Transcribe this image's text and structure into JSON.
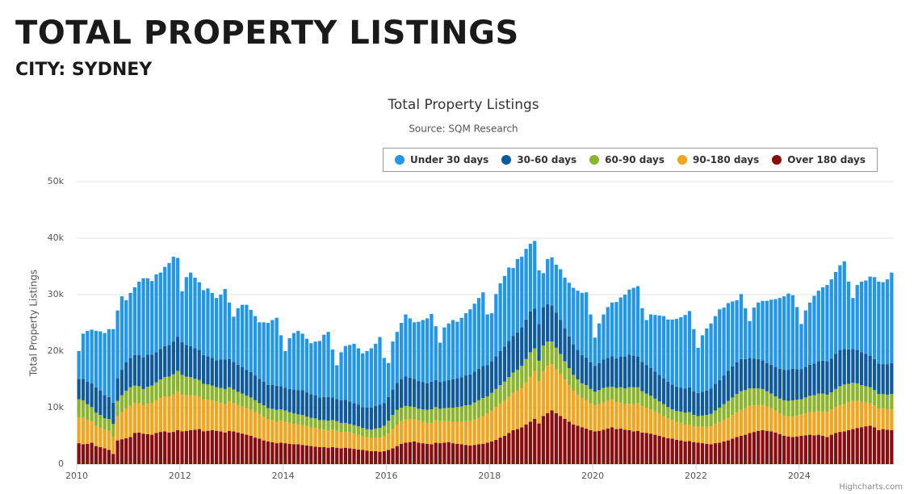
{
  "header": {
    "title": "TOTAL PROPERTY LISTINGS",
    "subtitle": "CITY: SYDNEY"
  },
  "credits": "Highcharts.com",
  "chart_data": {
    "type": "stacked_bar",
    "title": "Total Property Listings",
    "subtitle": "Source: SQM Research",
    "ylabel": "Total Property Listings",
    "grid": true,
    "legend": "top-right",
    "ylim": [
      0,
      50000
    ],
    "yticks": [
      0,
      {
        "value": 10000,
        "label": "10k"
      },
      {
        "value": 20000,
        "label": "20k"
      },
      {
        "value": 30000,
        "label": "30k"
      },
      {
        "value": 40000,
        "label": "40k"
      },
      {
        "value": 50000,
        "label": "50k"
      }
    ],
    "categories": [
      "2010",
      null,
      null,
      null,
      null,
      null,
      null,
      null,
      null,
      null,
      null,
      null,
      null,
      null,
      null,
      null,
      null,
      null,
      null,
      null,
      null,
      null,
      null,
      null,
      "2012",
      null,
      null,
      null,
      null,
      null,
      null,
      null,
      null,
      null,
      null,
      null,
      null,
      null,
      null,
      null,
      null,
      null,
      null,
      null,
      null,
      null,
      null,
      null,
      "2014",
      null,
      null,
      null,
      null,
      null,
      null,
      null,
      null,
      null,
      null,
      null,
      null,
      null,
      null,
      null,
      null,
      null,
      null,
      null,
      null,
      null,
      null,
      null,
      "2016",
      null,
      null,
      null,
      null,
      null,
      null,
      null,
      null,
      null,
      null,
      null,
      null,
      null,
      null,
      null,
      null,
      null,
      null,
      null,
      null,
      null,
      null,
      null,
      "2018",
      null,
      null,
      null,
      null,
      null,
      null,
      null,
      null,
      null,
      null,
      null,
      null,
      null,
      null,
      null,
      null,
      null,
      null,
      null,
      null,
      null,
      null,
      null,
      "2020",
      null,
      null,
      null,
      null,
      null,
      null,
      null,
      null,
      null,
      null,
      null,
      null,
      null,
      null,
      null,
      null,
      null,
      null,
      null,
      null,
      null,
      null,
      null,
      "2022",
      null,
      null,
      null,
      null,
      null,
      null,
      null,
      null,
      null,
      null,
      null,
      null,
      null,
      null,
      null,
      null,
      null,
      null,
      null,
      null,
      null,
      null,
      null,
      "2024",
      null,
      null,
      null,
      null,
      null,
      null,
      null,
      null,
      null,
      null,
      null,
      null,
      null,
      null,
      null,
      null,
      null,
      null,
      null,
      null,
      null
    ],
    "series": [
      {
        "name": "Under 30 days",
        "color": "#2196ea",
        "values": [
          5000,
          8000,
          9000,
          9500,
          10000,
          10500,
          11000,
          12000,
          13000,
          12000,
          13000,
          11000,
          11500,
          12000,
          13000,
          14000,
          13500,
          13000,
          13800,
          13500,
          14000,
          14500,
          15000,
          14000,
          9000,
          12000,
          13000,
          12500,
          12000,
          11500,
          12000,
          11500,
          11000,
          11500,
          12500,
          10000,
          8000,
          10000,
          11000,
          11500,
          11000,
          10500,
          10000,
          10500,
          11000,
          11500,
          12000,
          9000,
          6500,
          9000,
          10000,
          10500,
          10000,
          9500,
          9000,
          9500,
          10000,
          11000,
          11500,
          8500,
          6000,
          8500,
          9500,
          10000,
          10500,
          10000,
          9500,
          10000,
          10500,
          11000,
          12000,
          8000,
          6000,
          8500,
          9000,
          10000,
          11000,
          10500,
          10000,
          10500,
          11000,
          11500,
          12000,
          9500,
          7000,
          9500,
          10000,
          10500,
          10000,
          10500,
          11000,
          11500,
          12000,
          12500,
          13000,
          9000,
          8500,
          11000,
          12000,
          12500,
          13000,
          12000,
          13000,
          12500,
          12500,
          12000,
          12000,
          9500,
          6000,
          8000,
          8500,
          8500,
          9000,
          9000,
          9500,
          10000,
          10500,
          11000,
          11500,
          8500,
          5000,
          7000,
          8000,
          9000,
          9500,
          10000,
          10500,
          11000,
          11500,
          12000,
          12500,
          9500,
          8000,
          9500,
          10000,
          10500,
          11000,
          11000,
          11500,
          12000,
          12500,
          13000,
          13500,
          11000,
          8000,
          10000,
          11000,
          11500,
          12000,
          12500,
          12000,
          12000,
          11500,
          11000,
          11500,
          9000,
          6500,
          9000,
          10000,
          10500,
          11000,
          11500,
          12000,
          12500,
          13000,
          13500,
          13000,
          11000,
          8000,
          10000,
          11000,
          12000,
          12500,
          13000,
          13500,
          14000,
          14500,
          15000,
          15500,
          12000,
          9000,
          11500,
          12500,
          13000,
          14000,
          14500,
          14500,
          14500,
          15000,
          16000
        ]
      },
      {
        "name": "30-60 days",
        "color": "#0d5a9e",
        "values": [
          3500,
          3800,
          4000,
          4200,
          4500,
          4300,
          4100,
          3900,
          3800,
          4000,
          4500,
          5000,
          5200,
          5400,
          5500,
          5600,
          5700,
          5500,
          5300,
          5400,
          5500,
          5600,
          5800,
          6000,
          5800,
          5600,
          5500,
          5400,
          5300,
          5100,
          5000,
          4900,
          4800,
          5000,
          5200,
          5000,
          4900,
          4800,
          4700,
          4600,
          4500,
          4400,
          4300,
          4200,
          4100,
          4200,
          4300,
          4100,
          4000,
          4100,
          4200,
          4300,
          4400,
          4300,
          4200,
          4100,
          4000,
          4100,
          4200,
          4000,
          3900,
          4000,
          4100,
          4000,
          3900,
          3800,
          3700,
          3800,
          3900,
          4000,
          4100,
          4000,
          4200,
          4500,
          4800,
          5000,
          5200,
          5100,
          5000,
          4900,
          4800,
          4700,
          4900,
          4800,
          4700,
          4800,
          4900,
          5000,
          5100,
          5200,
          5300,
          5400,
          5500,
          5600,
          5700,
          5500,
          5600,
          5800,
          6000,
          6200,
          6400,
          6500,
          6600,
          6800,
          7000,
          7200,
          7000,
          6500,
          6800,
          6600,
          6400,
          6200,
          6000,
          5800,
          5600,
          5400,
          5200,
          5000,
          4900,
          4700,
          4600,
          4800,
          5000,
          5200,
          5400,
          5200,
          5400,
          5600,
          5800,
          5600,
          5400,
          5200,
          5000,
          4900,
          4800,
          4700,
          4600,
          4500,
          4400,
          4300,
          4200,
          4300,
          4400,
          4200,
          4100,
          4200,
          4300,
          4500,
          4700,
          4900,
          5100,
          5300,
          5500,
          5600,
          5700,
          5500,
          5400,
          5300,
          5200,
          5100,
          5000,
          5100,
          5200,
          5300,
          5400,
          5500,
          5600,
          5400,
          5300,
          5400,
          5500,
          5600,
          5700,
          5800,
          5900,
          6000,
          6200,
          6400,
          6300,
          6100,
          6000,
          5900,
          5800,
          5700,
          5600,
          5500,
          5400,
          5300,
          5400,
          5500
        ]
      },
      {
        "name": "60-90 days",
        "color": "#8cb52e",
        "values": [
          3200,
          3000,
          2800,
          2500,
          2300,
          2200,
          2000,
          2100,
          2300,
          2800,
          3000,
          3200,
          3300,
          3100,
          3000,
          2900,
          3000,
          3100,
          3200,
          3300,
          3400,
          3500,
          3600,
          3700,
          3500,
          3300,
          3200,
          3000,
          2900,
          2800,
          2700,
          2600,
          2500,
          2600,
          2700,
          2500,
          2400,
          2300,
          2300,
          2200,
          2200,
          2100,
          2000,
          2000,
          1900,
          2000,
          2100,
          2000,
          2000,
          1900,
          1900,
          1800,
          1800,
          1700,
          1700,
          1700,
          1600,
          1700,
          1800,
          1700,
          1700,
          1600,
          1600,
          1500,
          1500,
          1500,
          1400,
          1400,
          1500,
          1600,
          1700,
          1800,
          2200,
          2500,
          2600,
          2400,
          2300,
          2200,
          2100,
          2100,
          2200,
          2300,
          2400,
          2300,
          2200,
          2300,
          2400,
          2500,
          2600,
          2700,
          2800,
          2900,
          3000,
          3100,
          3200,
          3000,
          3100,
          3200,
          3300,
          3400,
          3500,
          3600,
          3700,
          3900,
          4100,
          4300,
          4000,
          3600,
          4500,
          4200,
          4000,
          3800,
          3500,
          3200,
          3000,
          2800,
          2700,
          2600,
          2700,
          2500,
          2400,
          2500,
          2600,
          2400,
          2200,
          2500,
          2700,
          2800,
          2900,
          3000,
          2800,
          2600,
          2500,
          2400,
          2300,
          2200,
          2100,
          2000,
          1900,
          1900,
          2000,
          2100,
          2200,
          2000,
          1900,
          2000,
          2100,
          2200,
          2400,
          2600,
          2800,
          3000,
          3100,
          3200,
          3300,
          3200,
          3100,
          3000,
          2900,
          2800,
          2700,
          2600,
          2500,
          2600,
          2700,
          2800,
          2900,
          2800,
          2700,
          2800,
          2900,
          3000,
          3100,
          3200,
          3100,
          3000,
          3200,
          3400,
          3500,
          3300,
          3200,
          3100,
          3000,
          2900,
          2800,
          2700,
          2600,
          2500,
          2600,
          2700
        ]
      },
      {
        "name": "90-180 days",
        "color": "#f2a51f",
        "values": [
          4600,
          4800,
          4200,
          3800,
          3600,
          3500,
          3300,
          3400,
          3000,
          4200,
          4800,
          5200,
          5500,
          5300,
          5200,
          5000,
          5400,
          5600,
          5800,
          6000,
          6200,
          6400,
          6600,
          6800,
          6500,
          6300,
          6200,
          6000,
          5800,
          5600,
          5500,
          5300,
          5200,
          5100,
          5000,
          5200,
          5000,
          4900,
          4800,
          4700,
          4600,
          4500,
          4300,
          4200,
          4000,
          3900,
          3800,
          3900,
          3800,
          3700,
          3600,
          3500,
          3500,
          3400,
          3300,
          3300,
          3200,
          3100,
          3000,
          3100,
          3000,
          2900,
          2800,
          2800,
          2700,
          2600,
          2500,
          2400,
          2300,
          2400,
          2500,
          2700,
          3000,
          3400,
          3800,
          4000,
          4200,
          4100,
          4000,
          3900,
          3800,
          3700,
          3800,
          4000,
          3900,
          3800,
          3700,
          3800,
          3900,
          4000,
          4200,
          4300,
          4500,
          4700,
          4900,
          5200,
          5500,
          5800,
          6000,
          6200,
          6400,
          6600,
          6800,
          7000,
          7500,
          8000,
          8500,
          7500,
          8000,
          8500,
          8200,
          7800,
          7500,
          7000,
          6500,
          6000,
          5500,
          5200,
          5000,
          4800,
          4600,
          4700,
          4800,
          4900,
          5000,
          4800,
          4600,
          4500,
          4700,
          4800,
          4900,
          4700,
          4500,
          4300,
          4100,
          3900,
          3700,
          3500,
          3300,
          3200,
          3100,
          3000,
          2900,
          2800,
          2800,
          2900,
          3000,
          3200,
          3400,
          3600,
          3800,
          4000,
          4200,
          4400,
          4600,
          4700,
          4800,
          4700,
          4600,
          4500,
          4300,
          4100,
          3900,
          3700,
          3600,
          3500,
          3600,
          3700,
          3800,
          3900,
          4000,
          4100,
          4200,
          4300,
          4400,
          4500,
          4600,
          4700,
          4800,
          4900,
          5000,
          4800,
          4500,
          4200,
          4000,
          3900,
          3800,
          3700,
          3600,
          3700
        ]
      },
      {
        "name": "Over 180 days",
        "color": "#8a0c0c",
        "values": [
          3700,
          3500,
          3600,
          3800,
          3200,
          3000,
          2800,
          2500,
          1800,
          4200,
          4400,
          4600,
          4800,
          5500,
          5600,
          5400,
          5300,
          5200,
          5500,
          5700,
          5800,
          5600,
          5700,
          6000,
          5800,
          5900,
          6000,
          6100,
          6200,
          5800,
          5900,
          6000,
          5900,
          5800,
          5600,
          5900,
          5800,
          5600,
          5400,
          5200,
          5000,
          4700,
          4500,
          4200,
          4000,
          3900,
          3700,
          3800,
          3700,
          3600,
          3500,
          3500,
          3400,
          3300,
          3200,
          3100,
          3000,
          3000,
          2900,
          3000,
          2900,
          2800,
          2900,
          2800,
          2700,
          2600,
          2500,
          2400,
          2300,
          2300,
          2200,
          2300,
          2500,
          2800,
          3200,
          3600,
          3800,
          3900,
          4000,
          3800,
          3700,
          3600,
          3500,
          3800,
          3700,
          3800,
          3900,
          3700,
          3600,
          3500,
          3400,
          3300,
          3400,
          3500,
          3600,
          3800,
          4000,
          4300,
          4700,
          5000,
          5500,
          6000,
          6200,
          6500,
          7000,
          7500,
          8000,
          7200,
          8500,
          9000,
          9500,
          9000,
          8500,
          8000,
          7500,
          7000,
          6800,
          6500,
          6300,
          6000,
          5800,
          5900,
          6100,
          6300,
          6500,
          6200,
          6300,
          6100,
          6000,
          5800,
          5900,
          5600,
          5500,
          5400,
          5200,
          5000,
          4800,
          4600,
          4500,
          4300,
          4200,
          4000,
          4100,
          3900,
          3800,
          3700,
          3600,
          3500,
          3700,
          3800,
          4000,
          4200,
          4500,
          4800,
          5000,
          5200,
          5500,
          5700,
          5900,
          6000,
          5900,
          5800,
          5600,
          5300,
          5000,
          4900,
          4800,
          4900,
          5000,
          5100,
          5200,
          5100,
          5200,
          5000,
          4800,
          5200,
          5500,
          5700,
          5800,
          6000,
          6200,
          6400,
          6500,
          6700,
          6800,
          6500,
          6000,
          6200,
          6100,
          6000
        ]
      }
    ]
  }
}
